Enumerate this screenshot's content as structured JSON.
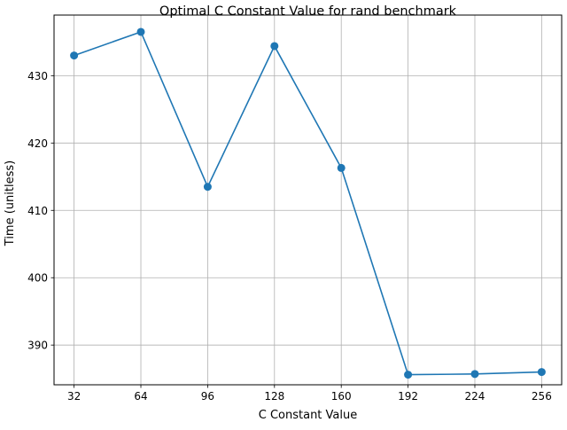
{
  "chart_data": {
    "type": "line",
    "title": "Optimal C Constant Value for rand benchmark",
    "xlabel": "C Constant Value",
    "ylabel": "Time (unitless)",
    "x": [
      32,
      64,
      96,
      128,
      160,
      192,
      224,
      256
    ],
    "xticks": [
      32,
      64,
      96,
      128,
      160,
      192,
      224,
      256
    ],
    "yticks": [
      390,
      400,
      410,
      420,
      430
    ],
    "xlim": [
      22.4,
      265.6
    ],
    "ylim": [
      384.1,
      439.0
    ],
    "series": [
      {
        "values": [
          433.0,
          436.5,
          413.5,
          434.4,
          416.3,
          385.6,
          385.7,
          386.0
        ],
        "color": "#1f77b4"
      }
    ],
    "grid": true,
    "marker": "circle"
  }
}
